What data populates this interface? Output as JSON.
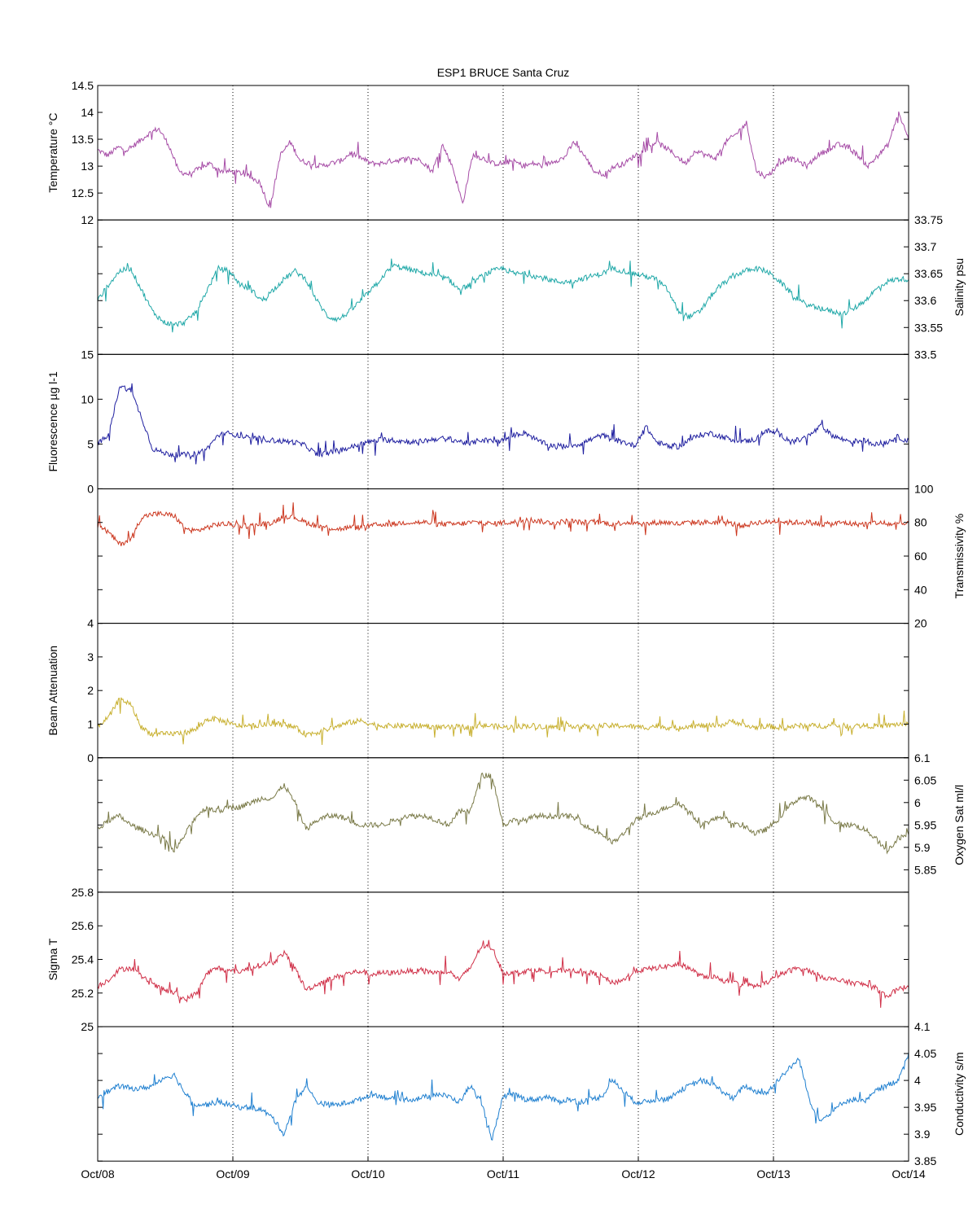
{
  "chart_data": {
    "type": "line",
    "title": "ESP1 BRUCE Santa Cruz",
    "x_ticks": [
      "Oct/08",
      "Oct/09",
      "Oct/10",
      "Oct/11",
      "Oct/12",
      "Oct/13",
      "Oct/14"
    ],
    "x_range": [
      "Oct/08",
      "Oct/14"
    ],
    "grid": "vertical dotted lines at each day",
    "panels": [
      {
        "key": "temperature",
        "ylabel": "Temperature °C",
        "axis_side": "left",
        "ylim": [
          12,
          14.5
        ],
        "ticks": [
          12,
          12.5,
          13,
          13.5,
          14,
          14.5
        ],
        "color": "#a64ca6",
        "values": [
          13.3,
          13.2,
          13.35,
          13.3,
          13.45,
          13.6,
          13.7,
          13.4,
          12.9,
          12.85,
          12.95,
          13.05,
          12.92,
          12.9,
          12.88,
          12.8,
          12.7,
          12.2,
          13.2,
          13.45,
          13.1,
          13.05,
          13.0,
          13.05,
          13.1,
          13.25,
          13.15,
          13.05,
          13.05,
          13.1,
          13.12,
          13.15,
          13.1,
          12.9,
          13.4,
          13.0,
          12.3,
          13.2,
          13.15,
          13.05,
          13.05,
          13.1,
          13.0,
          13.05,
          13.0,
          13.1,
          13.15,
          13.45,
          13.2,
          12.9,
          12.85,
          13.0,
          13.05,
          13.2,
          13.3,
          13.45,
          13.35,
          13.2,
          13.05,
          13.3,
          13.2,
          13.15,
          13.45,
          13.6,
          13.8,
          12.9,
          12.8,
          13.0,
          13.15,
          13.1,
          13.0,
          13.2,
          13.3,
          13.4,
          13.35,
          13.2,
          13.0,
          13.2,
          13.4,
          14.0,
          13.5
        ]
      },
      {
        "key": "salinity",
        "ylabel": "Salinity psu",
        "axis_side": "right",
        "ylim": [
          33.5,
          33.75
        ],
        "ticks": [
          33.5,
          33.55,
          33.6,
          33.65,
          33.7,
          33.75
        ],
        "color": "#20a8a8",
        "values": [
          33.6,
          33.63,
          33.655,
          33.66,
          33.62,
          33.58,
          33.56,
          33.555,
          33.56,
          33.58,
          33.62,
          33.66,
          33.655,
          33.63,
          33.62,
          33.6,
          33.62,
          33.64,
          33.655,
          33.64,
          33.6,
          33.57,
          33.565,
          33.58,
          33.6,
          33.62,
          33.645,
          33.665,
          33.66,
          33.655,
          33.65,
          33.645,
          33.64,
          33.62,
          33.63,
          33.645,
          33.655,
          33.66,
          33.65,
          33.65,
          33.645,
          33.64,
          33.635,
          33.635,
          33.64,
          33.645,
          33.65,
          33.66,
          33.655,
          33.65,
          33.645,
          33.64,
          33.62,
          33.58,
          33.57,
          33.58,
          33.61,
          33.63,
          33.645,
          33.655,
          33.66,
          33.655,
          33.64,
          33.62,
          33.6,
          33.59,
          33.585,
          33.58,
          33.575,
          33.585,
          33.6,
          33.62,
          33.635,
          33.64,
          33.64
        ]
      },
      {
        "key": "fluorescence",
        "ylabel": "Fluorescence µg l-1",
        "axis_side": "left",
        "ylim": [
          0,
          15
        ],
        "ticks": [
          0,
          5,
          10,
          15
        ],
        "color": "#2020a0",
        "values": [
          5.0,
          6.0,
          11.5,
          11.0,
          8.0,
          4.5,
          4.0,
          3.8,
          3.8,
          3.9,
          4.5,
          6.0,
          6.2,
          5.9,
          5.6,
          5.6,
          5.4,
          5.3,
          5.2,
          4.8,
          3.8,
          4.0,
          4.3,
          4.6,
          5.0,
          5.3,
          5.5,
          5.4,
          5.3,
          5.2,
          5.4,
          5.6,
          5.6,
          5.3,
          5.0,
          5.5,
          5.3,
          5.4,
          6.0,
          6.3,
          5.5,
          4.9,
          4.8,
          4.8,
          5.0,
          5.5,
          6.0,
          5.5,
          5.2,
          4.8,
          7.0,
          5.2,
          4.8,
          4.7,
          5.5,
          6.0,
          6.2,
          5.8,
          5.5,
          5.3,
          5.5,
          6.5,
          6.2,
          5.5,
          5.4,
          6.0,
          7.0,
          6.0,
          5.5,
          5.3,
          5.4,
          5.0,
          5.2,
          5.8,
          5.3
        ]
      },
      {
        "key": "transmissivity",
        "ylabel": "Transmissivity %",
        "axis_side": "right",
        "ylim": [
          20,
          100
        ],
        "ticks": [
          20,
          40,
          60,
          80,
          100
        ],
        "color": "#cc3820",
        "values": [
          79,
          74,
          67,
          70,
          83,
          85,
          85,
          84,
          76,
          75,
          77,
          79,
          79,
          78,
          78,
          79,
          80,
          84,
          83,
          80,
          78,
          77,
          76,
          77,
          77,
          78,
          79,
          79,
          80,
          80,
          80,
          79,
          79,
          79,
          80,
          80,
          79,
          80,
          80,
          82,
          81,
          80,
          80,
          81,
          80,
          80,
          80,
          79,
          80,
          80,
          79,
          80,
          80,
          79,
          80,
          80,
          80,
          80,
          79,
          78,
          80,
          80,
          81,
          80,
          80,
          80,
          79,
          79,
          80,
          79,
          79,
          80,
          79,
          79,
          79
        ]
      },
      {
        "key": "beam_attenuation",
        "ylabel": "Beam Attenuation",
        "axis_side": "left",
        "ylim": [
          0,
          4
        ],
        "ticks": [
          0,
          1,
          2,
          3,
          4
        ],
        "color": "#c8b030",
        "values": [
          0.95,
          1.2,
          1.75,
          1.6,
          0.9,
          0.7,
          0.7,
          0.72,
          0.75,
          0.85,
          1.15,
          1.15,
          1.0,
          0.95,
          0.95,
          0.98,
          1.0,
          1.0,
          0.9,
          0.7,
          0.75,
          0.85,
          0.95,
          1.05,
          1.1,
          1.0,
          0.95,
          0.95,
          0.95,
          0.95,
          0.95,
          0.9,
          0.9,
          0.92,
          0.9,
          0.95,
          0.95,
          0.9,
          0.92,
          0.95,
          0.95,
          0.92,
          0.9,
          0.95,
          0.95,
          0.9,
          0.95,
          0.95,
          0.95,
          0.92,
          0.9,
          0.95,
          0.9,
          0.9,
          0.95,
          0.95,
          0.95,
          0.98,
          1.1,
          0.95,
          0.9,
          0.95,
          0.9,
          0.92,
          0.95,
          0.95,
          0.95,
          0.95,
          0.95,
          0.95,
          0.95,
          0.95,
          0.95,
          1.0,
          1.0
        ]
      },
      {
        "key": "oxygen_sat",
        "ylabel": "Oxygen Sat ml/l",
        "axis_side": "right",
        "ylim": [
          5.8,
          6.1
        ],
        "ticks": [
          5.85,
          5.9,
          5.95,
          6,
          6.05,
          6.1
        ],
        "color": "#7a7a48",
        "values": [
          5.94,
          5.96,
          5.97,
          5.95,
          5.94,
          5.93,
          5.92,
          5.89,
          5.93,
          5.97,
          5.99,
          5.98,
          5.99,
          5.99,
          6.0,
          6.01,
          6.01,
          6.04,
          6.0,
          5.94,
          5.96,
          5.97,
          5.97,
          5.96,
          5.95,
          5.95,
          5.95,
          5.96,
          5.97,
          5.97,
          5.97,
          5.96,
          5.95,
          5.98,
          5.98,
          6.06,
          6.06,
          5.95,
          5.96,
          5.96,
          5.97,
          5.97,
          5.97,
          5.97,
          5.96,
          5.94,
          5.93,
          5.91,
          5.93,
          5.96,
          5.97,
          5.98,
          5.99,
          6.0,
          5.98,
          5.95,
          5.96,
          5.97,
          5.95,
          5.95,
          5.93,
          5.94,
          5.96,
          5.99,
          6.01,
          6.01,
          5.99,
          5.96,
          5.95,
          5.95,
          5.94,
          5.92,
          5.89,
          5.92,
          5.93
        ]
      },
      {
        "key": "sigma_t",
        "ylabel": "Sigma T",
        "axis_side": "left",
        "ylim": [
          25,
          25.8
        ],
        "ticks": [
          25,
          25.2,
          25.4,
          25.6,
          25.8
        ],
        "color": "#d03048",
        "values": [
          25.24,
          25.28,
          25.34,
          25.35,
          25.3,
          25.25,
          25.22,
          25.2,
          25.16,
          25.2,
          25.32,
          25.35,
          25.33,
          25.33,
          25.35,
          25.37,
          25.38,
          25.44,
          25.35,
          25.22,
          25.25,
          25.28,
          25.3,
          25.32,
          25.33,
          25.31,
          25.32,
          25.32,
          25.33,
          25.33,
          25.33,
          25.32,
          25.33,
          25.28,
          25.35,
          25.48,
          25.47,
          25.32,
          25.32,
          25.33,
          25.34,
          25.33,
          25.33,
          25.34,
          25.33,
          25.32,
          25.3,
          25.26,
          25.28,
          25.33,
          25.34,
          25.35,
          25.36,
          25.37,
          25.35,
          25.3,
          25.3,
          25.28,
          25.26,
          25.25,
          25.24,
          25.26,
          25.3,
          25.33,
          25.35,
          25.33,
          25.3,
          25.28,
          25.27,
          25.26,
          25.25,
          25.23,
          25.18,
          25.22,
          25.24
        ]
      },
      {
        "key": "conductivity",
        "ylabel": "Conductivity s/m",
        "axis_side": "right",
        "ylim": [
          3.85,
          4.1
        ],
        "ticks": [
          3.85,
          3.9,
          3.95,
          4,
          4.05,
          4.1
        ],
        "color": "#2080d0",
        "values": [
          3.97,
          3.98,
          3.99,
          3.985,
          3.985,
          3.99,
          4.005,
          4.01,
          3.975,
          3.955,
          3.955,
          3.96,
          3.955,
          3.95,
          3.95,
          3.945,
          3.93,
          3.9,
          3.96,
          3.99,
          3.96,
          3.955,
          3.955,
          3.96,
          3.965,
          3.975,
          3.97,
          3.965,
          3.965,
          3.965,
          3.97,
          3.975,
          3.97,
          3.96,
          3.99,
          3.96,
          3.89,
          3.97,
          3.975,
          3.965,
          3.965,
          3.97,
          3.96,
          3.965,
          3.96,
          3.965,
          3.97,
          4.0,
          3.98,
          3.96,
          3.96,
          3.965,
          3.965,
          3.98,
          3.99,
          4.0,
          3.995,
          3.98,
          3.965,
          3.99,
          3.98,
          3.975,
          4.0,
          4.02,
          4.04,
          3.96,
          3.925,
          3.94,
          3.96,
          3.965,
          3.96,
          3.98,
          3.99,
          4.0,
          4.05
        ]
      }
    ]
  }
}
